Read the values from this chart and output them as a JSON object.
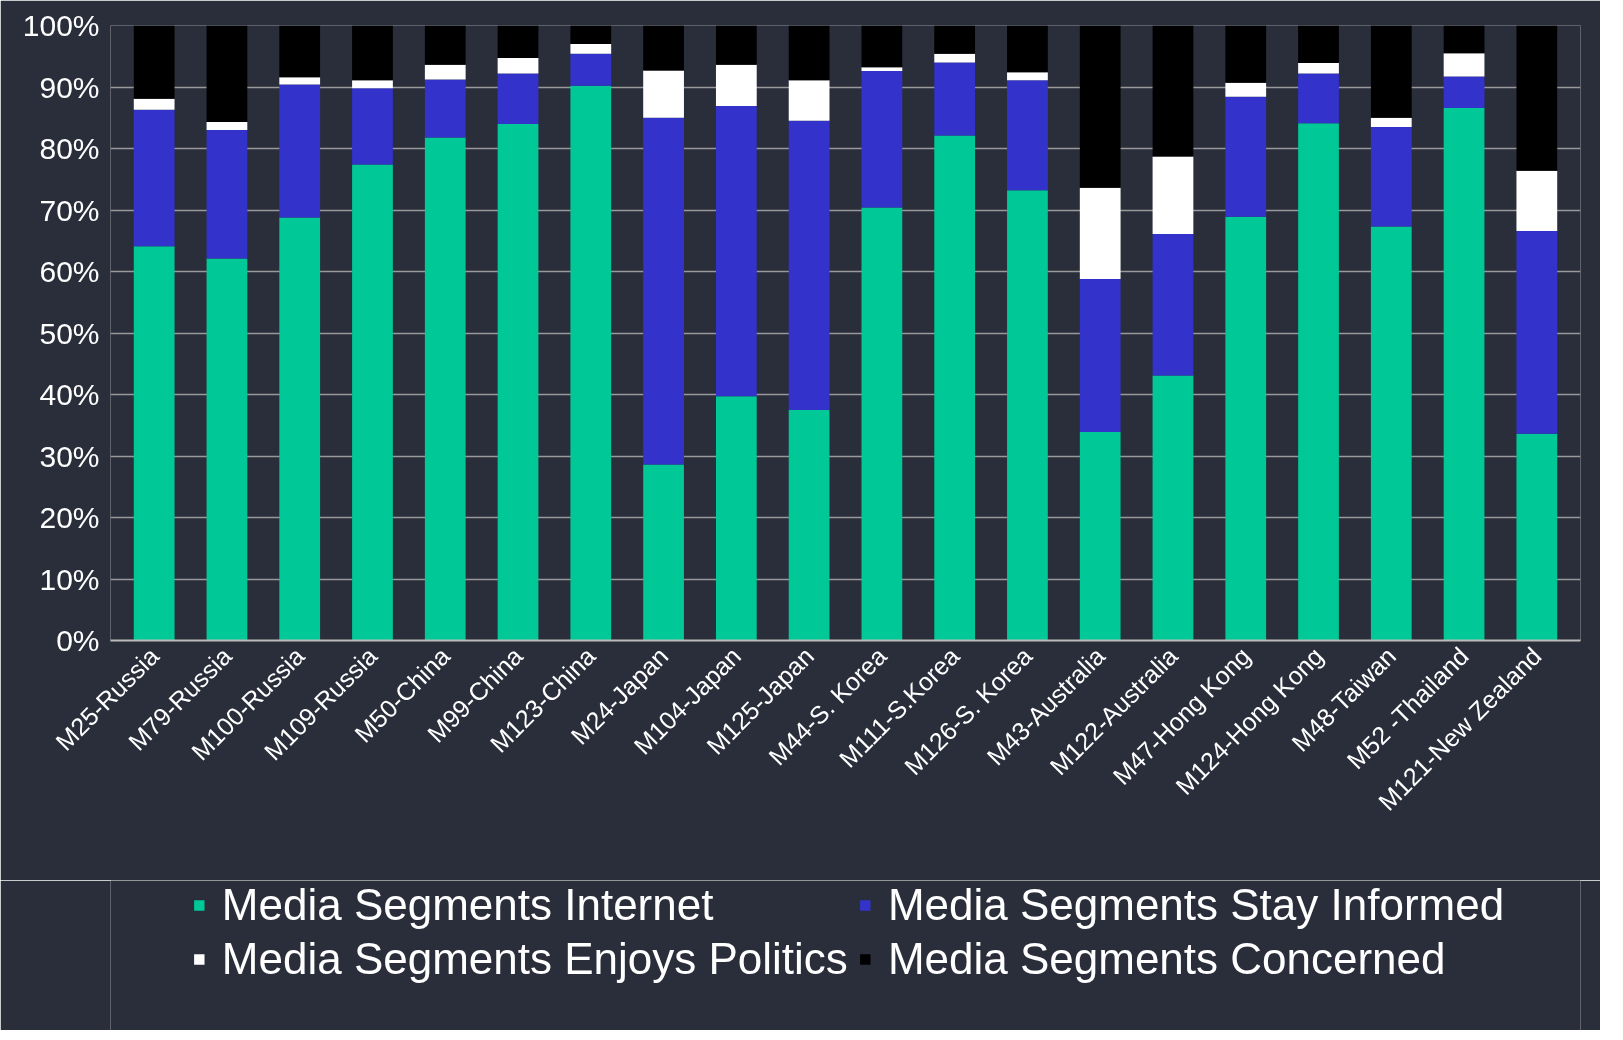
{
  "chart_data": {
    "type": "bar",
    "stacked": true,
    "categories": [
      "M25-Russia",
      "M79-Russia",
      "M100-Russia",
      "M109-Russia",
      "M50-China",
      "M99-China",
      "M123-China",
      "M24-Japan",
      "M104-Japan",
      "M125-Japan",
      "M44-S. Korea",
      "M111-S.Korea",
      "M126-S. Korea",
      "M43-Australia",
      "M122-Australia",
      "M47-Hong Kong",
      "M124-Hong Kong",
      "M48-Taiwan",
      "M52 -Thailand",
      "M121-New Zealand"
    ],
    "series": [
      {
        "name": "Media Segments Internet",
        "color": "#00c896",
        "values": [
          64.1,
          62.1,
          68.8,
          77.4,
          81.8,
          84.0,
          90.2,
          28.6,
          39.7,
          37.5,
          70.4,
          82.1,
          73.2,
          33.9,
          43.1,
          68.9,
          84.1,
          67.3,
          86.6,
          33.6
        ]
      },
      {
        "name": "Media Segments Stay Informed",
        "color": "#3333cc",
        "values": [
          22.2,
          20.9,
          21.6,
          12.4,
          9.4,
          8.2,
          5.2,
          56.4,
          47.2,
          47.0,
          22.2,
          11.9,
          17.9,
          24.9,
          23.0,
          19.5,
          8.1,
          16.2,
          5.1,
          33.0
        ]
      },
      {
        "name": "Media Segments Enjoys Politics",
        "color": "#ffffff",
        "values": [
          1.8,
          1.3,
          1.2,
          1.3,
          2.4,
          2.5,
          1.6,
          7.7,
          6.7,
          6.6,
          0.6,
          1.4,
          1.3,
          14.8,
          12.6,
          2.3,
          1.7,
          1.5,
          3.8,
          9.8
        ]
      },
      {
        "name": "Media Segments Concerned",
        "color": "#000000",
        "values": [
          11.9,
          15.7,
          8.4,
          8.9,
          6.4,
          5.3,
          3.0,
          7.3,
          6.4,
          8.9,
          6.8,
          4.6,
          7.6,
          26.4,
          21.3,
          9.3,
          6.1,
          15.0,
          4.5,
          23.6
        ]
      }
    ],
    "ylim": [
      0,
      100
    ],
    "yticks": [
      {
        "value": 0,
        "label": "0%"
      },
      {
        "value": 10,
        "label": "10%"
      },
      {
        "value": 20,
        "label": "20%"
      },
      {
        "value": 30,
        "label": "30%"
      },
      {
        "value": 40,
        "label": "40%"
      },
      {
        "value": 50,
        "label": "50%"
      },
      {
        "value": 60,
        "label": "60%"
      },
      {
        "value": 70,
        "label": "70%"
      },
      {
        "value": 80,
        "label": "80%"
      },
      {
        "value": 90,
        "label": "90%"
      },
      {
        "value": 100,
        "label": "100%"
      }
    ],
    "grid": "y",
    "legend": "bottom"
  }
}
